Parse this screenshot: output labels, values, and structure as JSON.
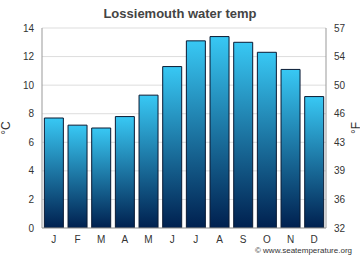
{
  "chart_data": {
    "type": "bar",
    "title": "Lossiemouth water temp",
    "source": "© www.seatemperature.org",
    "categories": [
      "J",
      "F",
      "M",
      "A",
      "M",
      "J",
      "J",
      "A",
      "S",
      "O",
      "N",
      "D"
    ],
    "values": [
      7.7,
      7.2,
      7.0,
      7.8,
      9.3,
      11.3,
      13.1,
      13.4,
      13.0,
      12.3,
      11.1,
      9.2
    ],
    "color": "#38c8f4",
    "y_label": "°C",
    "y2_label": "°F",
    "ylim": [
      0,
      14
    ],
    "yticks": [
      0,
      2,
      4,
      6,
      8,
      10,
      12,
      14
    ],
    "y2lim": [
      32,
      57.2
    ],
    "y2ticks": [
      32,
      {
        "value": 35.6,
        "label": "36"
      },
      {
        "value": 39.2,
        "label": "39"
      },
      {
        "value": 42.8,
        "label": "43"
      },
      {
        "value": 46.4,
        "label": "46"
      },
      50,
      {
        "value": 53.6,
        "label": "54"
      },
      {
        "value": 57.2,
        "label": "57"
      }
    ],
    "grid": true
  }
}
